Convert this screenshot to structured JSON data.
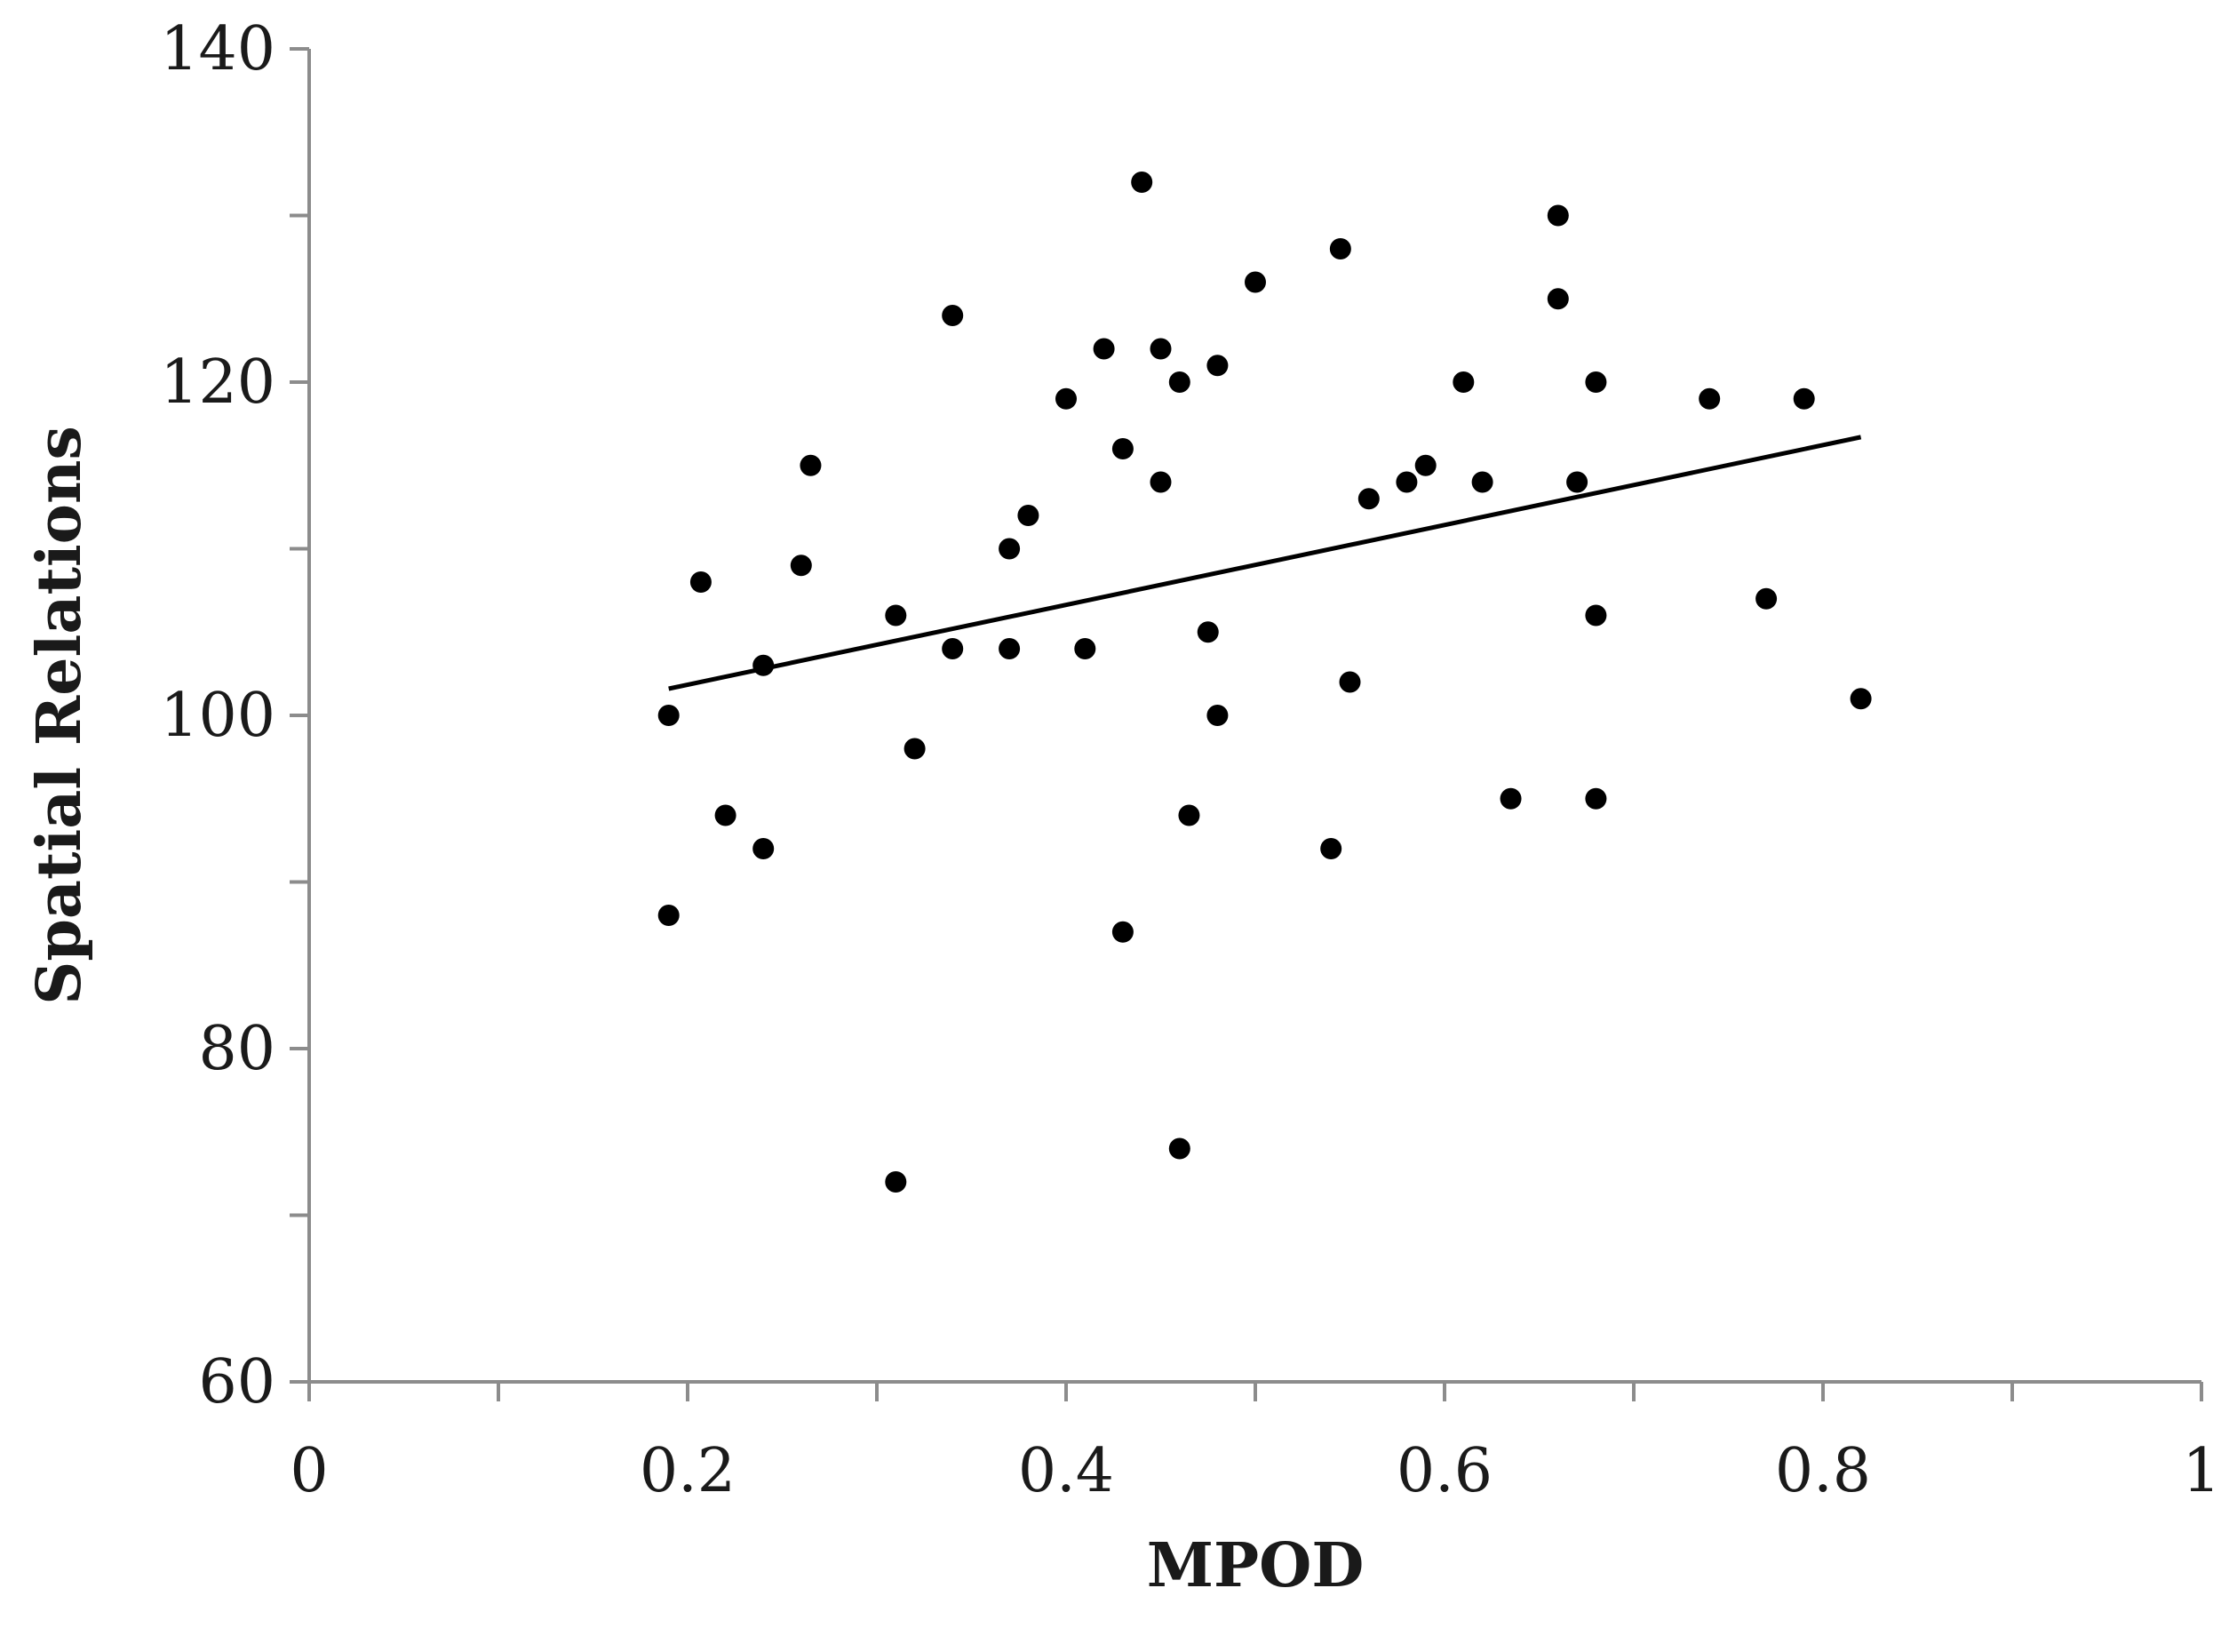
{
  "chart_data": {
    "type": "scatter",
    "xlabel": "MPOD",
    "ylabel": "Spatial Relations",
    "xlim": [
      0,
      1
    ],
    "ylim": [
      60,
      140
    ],
    "x_ticks": [
      0,
      0.2,
      0.4,
      0.6,
      0.8,
      1
    ],
    "x_tick_labels": [
      "0",
      "0.2",
      "0.4",
      "0.6",
      "0.8",
      "1"
    ],
    "x_minor_ticks": [
      0.1,
      0.3,
      0.5,
      0.7,
      0.9
    ],
    "y_ticks": [
      60,
      80,
      100,
      120,
      140
    ],
    "y_tick_labels": [
      "60",
      "80",
      "100",
      "120",
      "140"
    ],
    "y_minor_ticks": [
      70,
      90,
      110,
      130
    ],
    "grid": false,
    "legend": false,
    "marker_color": "#000000",
    "trendline": {
      "x": [
        0.19,
        0.82
      ],
      "y": [
        101.6,
        116.7
      ]
    },
    "points": [
      {
        "x": 0.19,
        "y": 100
      },
      {
        "x": 0.19,
        "y": 88
      },
      {
        "x": 0.207,
        "y": 108
      },
      {
        "x": 0.22,
        "y": 94
      },
      {
        "x": 0.24,
        "y": 103
      },
      {
        "x": 0.24,
        "y": 92
      },
      {
        "x": 0.26,
        "y": 109
      },
      {
        "x": 0.265,
        "y": 115
      },
      {
        "x": 0.31,
        "y": 106
      },
      {
        "x": 0.31,
        "y": 72
      },
      {
        "x": 0.32,
        "y": 98
      },
      {
        "x": 0.34,
        "y": 124
      },
      {
        "x": 0.34,
        "y": 104
      },
      {
        "x": 0.37,
        "y": 110
      },
      {
        "x": 0.37,
        "y": 104
      },
      {
        "x": 0.38,
        "y": 112
      },
      {
        "x": 0.4,
        "y": 119
      },
      {
        "x": 0.41,
        "y": 104
      },
      {
        "x": 0.42,
        "y": 122
      },
      {
        "x": 0.43,
        "y": 116
      },
      {
        "x": 0.43,
        "y": 87
      },
      {
        "x": 0.44,
        "y": 132
      },
      {
        "x": 0.45,
        "y": 122
      },
      {
        "x": 0.45,
        "y": 114
      },
      {
        "x": 0.46,
        "y": 120
      },
      {
        "x": 0.46,
        "y": 74
      },
      {
        "x": 0.465,
        "y": 94
      },
      {
        "x": 0.475,
        "y": 105
      },
      {
        "x": 0.48,
        "y": 121
      },
      {
        "x": 0.48,
        "y": 100
      },
      {
        "x": 0.5,
        "y": 126
      },
      {
        "x": 0.54,
        "y": 92
      },
      {
        "x": 0.545,
        "y": 128
      },
      {
        "x": 0.55,
        "y": 102
      },
      {
        "x": 0.56,
        "y": 113
      },
      {
        "x": 0.58,
        "y": 114
      },
      {
        "x": 0.59,
        "y": 115
      },
      {
        "x": 0.61,
        "y": 120
      },
      {
        "x": 0.62,
        "y": 114
      },
      {
        "x": 0.635,
        "y": 95
      },
      {
        "x": 0.66,
        "y": 130
      },
      {
        "x": 0.66,
        "y": 125
      },
      {
        "x": 0.67,
        "y": 114
      },
      {
        "x": 0.68,
        "y": 120
      },
      {
        "x": 0.68,
        "y": 106
      },
      {
        "x": 0.68,
        "y": 95
      },
      {
        "x": 0.74,
        "y": 119
      },
      {
        "x": 0.77,
        "y": 107
      },
      {
        "x": 0.79,
        "y": 119
      },
      {
        "x": 0.82,
        "y": 101
      }
    ]
  }
}
